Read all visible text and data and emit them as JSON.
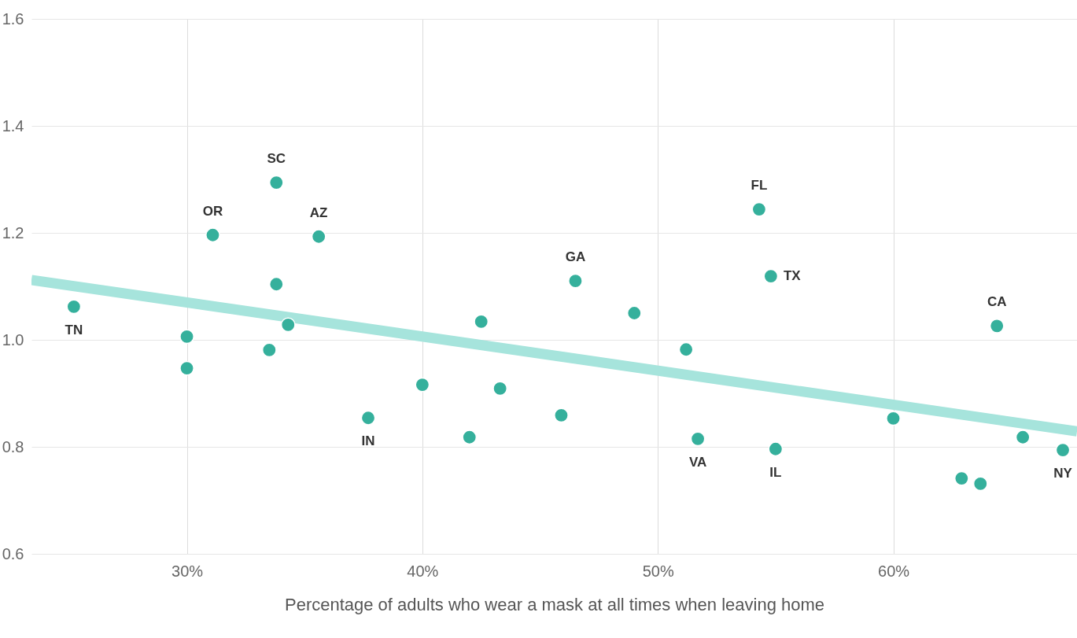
{
  "chart_data": {
    "type": "scatter",
    "xlabel": "Percentage of adults who wear a mask at all times when leaving home",
    "xlim": [
      23.4,
      67.8
    ],
    "ylim": [
      0.6,
      1.6
    ],
    "xticks": [
      {
        "value": 30,
        "label": "30%"
      },
      {
        "value": 40,
        "label": "40%"
      },
      {
        "value": 50,
        "label": "50%"
      },
      {
        "value": 60,
        "label": "60%"
      }
    ],
    "yticks": [
      0.6,
      0.8,
      {
        "value": 1,
        "label": "1.0"
      },
      1.2,
      1.4,
      1.6
    ],
    "grid": true,
    "series": [
      {
        "type": "line",
        "color": "#a6e4dc",
        "x": [
          23.4,
          67.8
        ],
        "values": [
          1.112,
          0.829
        ]
      },
      {
        "color": "#35b09c",
        "marker": "circle",
        "x": [
          25.2,
          30.0,
          30.0,
          31.1,
          33.8,
          33.8,
          33.5,
          34.3,
          35.6,
          37.7,
          40.0,
          42.5,
          42.0,
          43.3,
          46.5,
          45.9,
          49.0,
          51.2,
          51.7,
          54.3,
          54.8,
          55.0,
          60.0,
          62.9,
          63.7,
          64.4,
          65.5,
          67.2
        ],
        "values": [
          1.062,
          1.006,
          0.947,
          1.196,
          1.294,
          1.104,
          0.981,
          1.028,
          1.193,
          0.854,
          0.916,
          1.034,
          0.818,
          0.909,
          1.11,
          0.859,
          1.05,
          0.982,
          0.815,
          1.244,
          1.119,
          0.796,
          0.853,
          0.741,
          0.731,
          1.026,
          0.818,
          0.794
        ]
      }
    ],
    "annotations": [
      {
        "text": "TN",
        "x": 25.2,
        "y": 1.062
      },
      {
        "text": "OR",
        "x": 31.1,
        "y": 1.196
      },
      {
        "text": "SC",
        "x": 33.8,
        "y": 1.294
      },
      {
        "text": "AZ",
        "x": 35.6,
        "y": 1.193
      },
      {
        "text": "IN",
        "x": 37.7,
        "y": 0.854
      },
      {
        "text": "GA",
        "x": 46.5,
        "y": 1.11
      },
      {
        "text": "FL",
        "x": 54.3,
        "y": 1.244
      },
      {
        "text": "TX",
        "x": 54.8,
        "y": 1.119
      },
      {
        "text": "VA",
        "x": 51.7,
        "y": 0.815
      },
      {
        "text": "IL",
        "x": 55.0,
        "y": 0.796
      },
      {
        "text": "CA",
        "x": 64.4,
        "y": 1.026
      },
      {
        "text": "NY",
        "x": 67.2,
        "y": 0.794
      }
    ]
  }
}
